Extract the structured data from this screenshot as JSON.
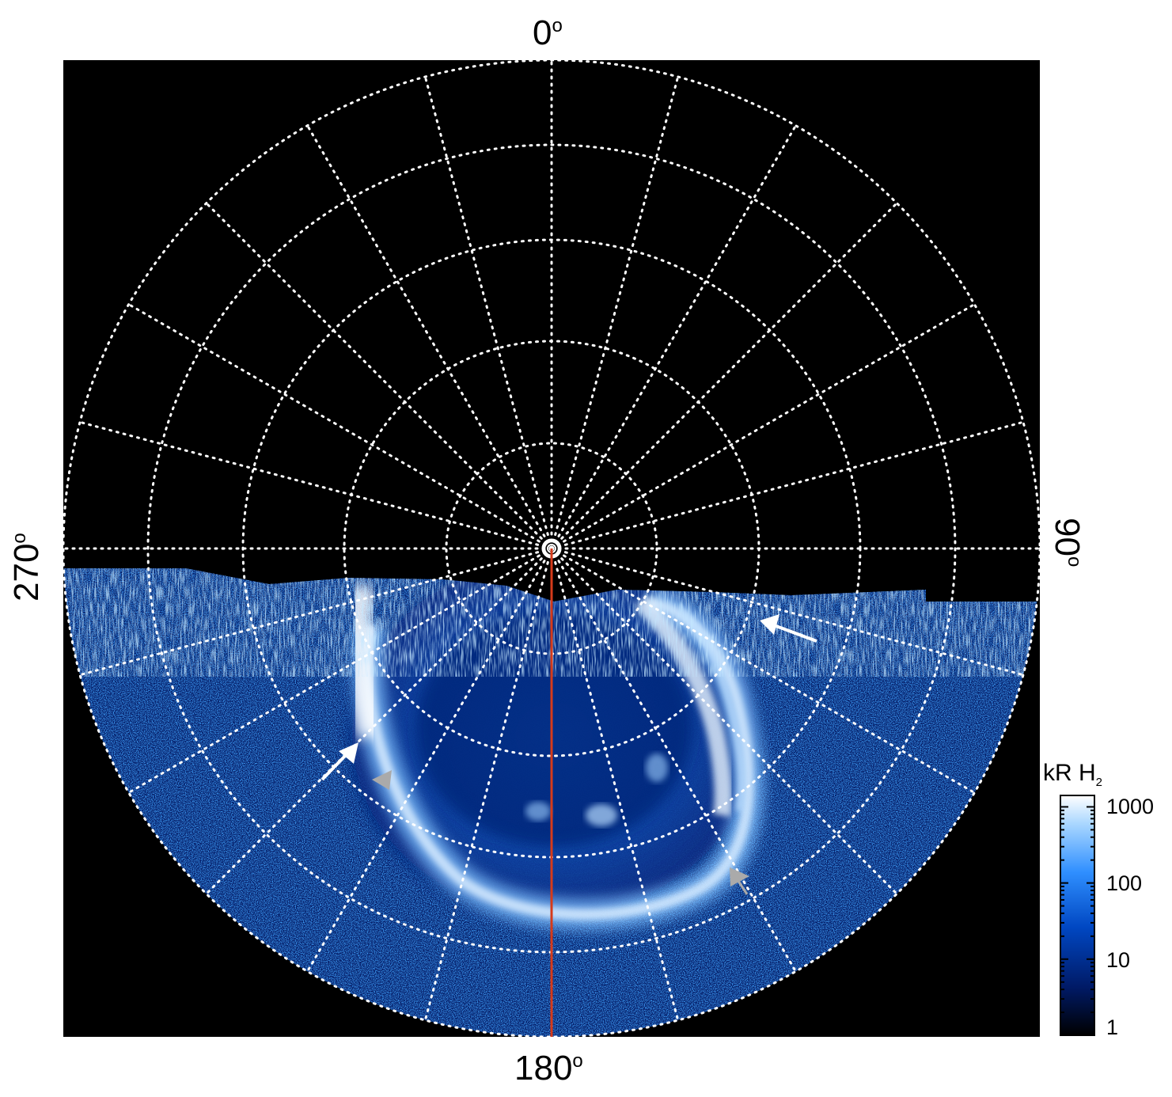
{
  "labels": {
    "top": "0",
    "bottom": "180",
    "left": "270",
    "right": "90",
    "degree_sign": "o"
  },
  "colorbar": {
    "title_main": "kR H",
    "title_sub": "2",
    "ticks": [
      "1000",
      "100",
      "10",
      "1"
    ],
    "colors": [
      "#000000",
      "#001a66",
      "#0047c2",
      "#2f8fff",
      "#a8d6ff",
      "#ffffff"
    ]
  },
  "colors": {
    "background": "#000000",
    "grid": "#ffffff",
    "meridian_line": "#d63a1a",
    "arrow_white": "#ffffff",
    "arrow_grey": "#aaaaaa"
  },
  "grid": {
    "meridian_step_deg": 15,
    "parallel_count": 6
  }
}
